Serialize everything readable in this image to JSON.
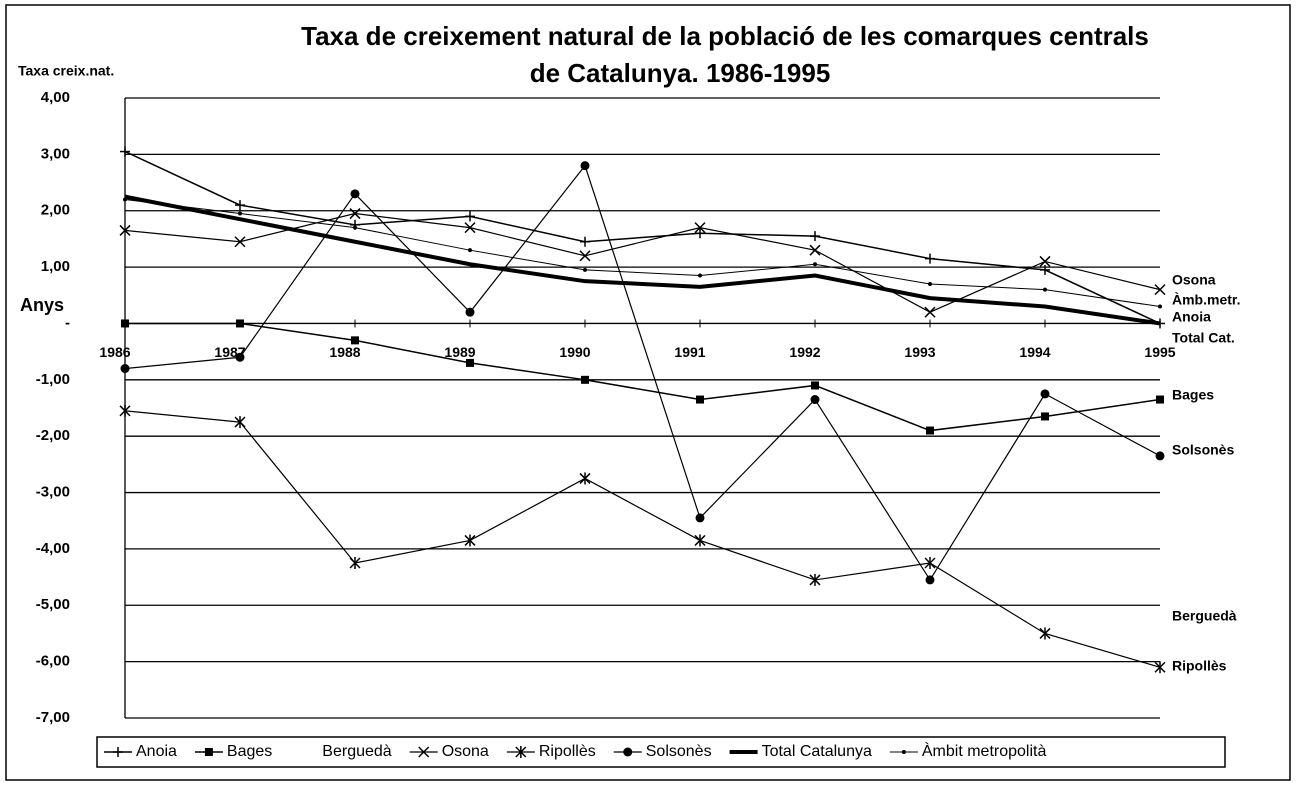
{
  "chart_data": {
    "type": "line",
    "title": [
      "Taxa de creixement natural de la població de les comarques centrals",
      "de Catalunya. 1986-1995"
    ],
    "y_label": "Taxa creix.nat.",
    "x_label": "Anys",
    "categories": [
      "1986",
      "1987",
      "1988",
      "1989",
      "1990",
      "1991",
      "1992",
      "1993",
      "1994",
      "1995"
    ],
    "ylim": [
      -7,
      4
    ],
    "yticks": [
      {
        "value": 4,
        "label": "4,00"
      },
      {
        "value": 3,
        "label": "3,00"
      },
      {
        "value": 2,
        "label": "2,00"
      },
      {
        "value": 1,
        "label": "1,00"
      },
      {
        "value": 0,
        "label": "-"
      },
      {
        "value": -1,
        "label": "-1,00"
      },
      {
        "value": -2,
        "label": "-2,00"
      },
      {
        "value": -3,
        "label": "-3,00"
      },
      {
        "value": -4,
        "label": "-4,00"
      },
      {
        "value": -5,
        "label": "-5,00"
      },
      {
        "value": -6,
        "label": "-6,00"
      },
      {
        "value": -7,
        "label": "-7,00"
      }
    ],
    "grid": true,
    "legend": "bottom",
    "series": [
      {
        "name": "Anoia",
        "color": "#000000",
        "marker": "plus",
        "line_width": 1.5,
        "values": [
          3.05,
          2.1,
          1.75,
          1.9,
          1.45,
          1.6,
          1.55,
          1.15,
          0.95,
          0.0
        ]
      },
      {
        "name": "Bages",
        "color": "#000000",
        "marker": "square",
        "line_width": 1.5,
        "values": [
          0.0,
          0.0,
          -0.3,
          -0.7,
          -1.0,
          -1.35,
          -1.1,
          -1.9,
          -1.65,
          -1.35
        ]
      },
      {
        "name": "Berguedà",
        "color": "#000000",
        "marker": "none",
        "line_width": 1.5,
        "values": [
          null,
          null,
          null,
          null,
          null,
          null,
          null,
          null,
          null,
          null
        ]
      },
      {
        "name": "Osona",
        "color": "#000000",
        "marker": "x",
        "line_width": 1.2,
        "values": [
          1.65,
          1.45,
          1.95,
          1.7,
          1.2,
          1.7,
          1.3,
          0.2,
          1.1,
          0.6
        ]
      },
      {
        "name": "Ripollès",
        "color": "#000000",
        "marker": "star",
        "line_width": 1.2,
        "values": [
          -1.55,
          -1.75,
          -4.25,
          -3.85,
          -2.75,
          -3.85,
          -4.55,
          -4.25,
          -5.5,
          -6.1
        ]
      },
      {
        "name": "Solsonès",
        "color": "#000000",
        "marker": "dot",
        "line_width": 1.2,
        "values": [
          -0.8,
          -0.6,
          2.3,
          0.2,
          2.8,
          -3.45,
          -1.35,
          -4.55,
          -1.25,
          -2.35
        ]
      },
      {
        "name": "Total Catalunya",
        "color": "#000000",
        "marker": "none",
        "line_width": 4,
        "values": [
          2.25,
          1.85,
          1.45,
          1.05,
          0.75,
          0.65,
          0.85,
          0.45,
          0.3,
          0.0
        ]
      },
      {
        "name": "Àmbit metropolità",
        "color": "#000000",
        "marker": "smalldot",
        "line_width": 1,
        "values": [
          2.2,
          1.95,
          1.7,
          1.3,
          0.95,
          0.85,
          1.05,
          0.7,
          0.6,
          0.3
        ]
      }
    ],
    "end_labels": [
      "Osona",
      "Àmb.metr.",
      "Anoia",
      "Total Cat.",
      "Bages",
      "Solsonès",
      "Berguedà",
      "Ripollès"
    ]
  }
}
